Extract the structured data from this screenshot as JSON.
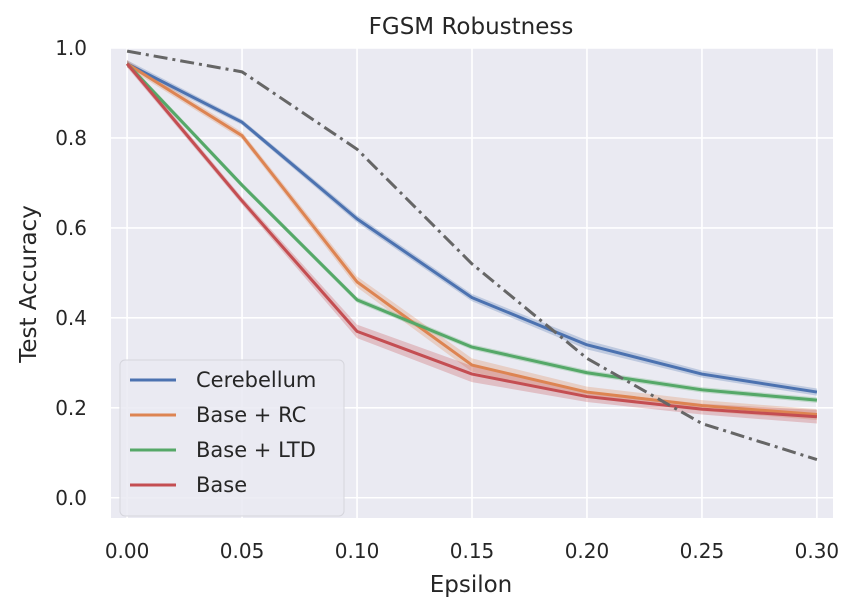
{
  "chart_data": {
    "type": "line",
    "title": "FGSM Robustness",
    "xlabel": "Epsilon",
    "ylabel": "Test Accuracy",
    "x": [
      0.0,
      0.05,
      0.1,
      0.15,
      0.2,
      0.25,
      0.3
    ],
    "x_tick_labels": [
      "0.00",
      "0.05",
      "0.10",
      "0.15",
      "0.20",
      "0.25",
      "0.30"
    ],
    "y_ticks": [
      0.0,
      0.2,
      0.4,
      0.6,
      0.8,
      1.0
    ],
    "y_tick_labels": [
      "0.0",
      "0.2",
      "0.4",
      "0.6",
      "0.8",
      "1.0"
    ],
    "xlim": [
      -0.007,
      0.307
    ],
    "ylim": [
      -0.045,
      1.0
    ],
    "grid": true,
    "legend_position": "lower-left",
    "series": [
      {
        "name": "Cerebellum",
        "color": "#4c72b0",
        "values": [
          0.965,
          0.835,
          0.62,
          0.445,
          0.34,
          0.275,
          0.235
        ],
        "band": [
          0.008,
          0.006,
          0.008,
          0.008,
          0.01,
          0.008,
          0.008
        ]
      },
      {
        "name": "Base + RC",
        "color": "#dd8452",
        "values": [
          0.965,
          0.805,
          0.48,
          0.295,
          0.235,
          0.205,
          0.185
        ],
        "band": [
          0.008,
          0.008,
          0.012,
          0.015,
          0.012,
          0.012,
          0.012
        ]
      },
      {
        "name": "Base + LTD",
        "color": "#55a868",
        "values": [
          0.965,
          0.695,
          0.44,
          0.335,
          0.278,
          0.24,
          0.217
        ],
        "band": [
          0.006,
          0.006,
          0.006,
          0.006,
          0.006,
          0.006,
          0.006
        ]
      },
      {
        "name": "Base",
        "color": "#c44e52",
        "values": [
          0.965,
          0.66,
          0.37,
          0.275,
          0.225,
          0.197,
          0.18
        ],
        "band": [
          0.008,
          0.008,
          0.015,
          0.018,
          0.012,
          0.012,
          0.015
        ]
      },
      {
        "name": "",
        "color": "#666666",
        "dashed": true,
        "values": [
          0.993,
          0.947,
          0.775,
          0.52,
          0.31,
          0.165,
          0.085
        ],
        "band": [
          0,
          0,
          0,
          0,
          0,
          0,
          0
        ]
      }
    ]
  }
}
